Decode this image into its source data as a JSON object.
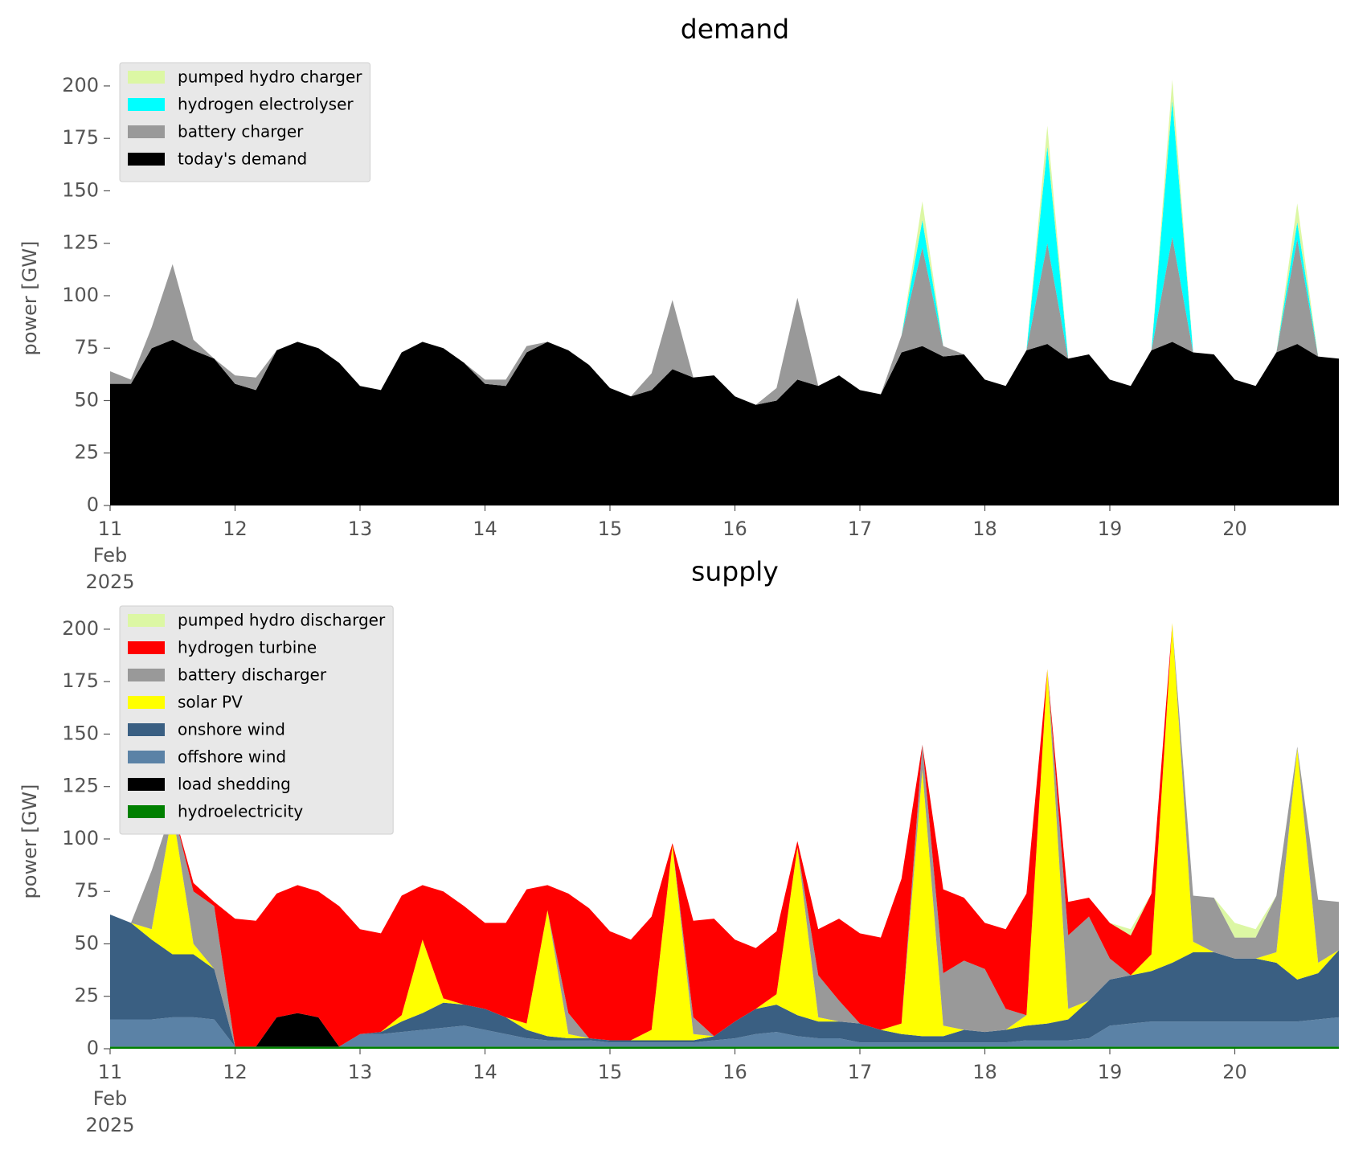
{
  "chart_data": [
    {
      "type": "stacked_area",
      "title": "demand",
      "ylabel": "power [GW]",
      "legend": "upper left",
      "x": [
        11,
        11.167,
        11.333,
        11.5,
        11.667,
        11.833,
        12,
        12.167,
        12.333,
        12.5,
        12.667,
        12.833,
        13,
        13.167,
        13.333,
        13.5,
        13.667,
        13.833,
        14,
        14.167,
        14.333,
        14.5,
        14.667,
        14.833,
        15,
        15.167,
        15.333,
        15.5,
        15.667,
        15.833,
        16,
        16.167,
        16.333,
        16.5,
        16.667,
        16.833,
        17,
        17.167,
        17.333,
        17.5,
        17.667,
        17.833,
        18,
        18.167,
        18.333,
        18.5,
        18.667,
        18.833,
        19,
        19.167,
        19.333,
        19.5,
        19.667,
        19.833,
        20,
        20.167,
        20.333,
        20.5,
        20.667,
        20.833
      ],
      "xlim": [
        11,
        21
      ],
      "xticks": [
        {
          "value": 11,
          "label": "11\nFeb\n2025"
        },
        12,
        13,
        14,
        15,
        16,
        17,
        18,
        19,
        20
      ],
      "ylim": [
        0,
        213
      ],
      "yticks": [
        0,
        25,
        50,
        75,
        100,
        125,
        150,
        175,
        200
      ],
      "series": [
        {
          "name": "today's demand",
          "color": "#000000",
          "values": [
            58,
            58,
            75,
            79,
            74,
            70,
            58,
            55,
            74,
            78,
            75,
            68,
            57,
            55,
            73,
            78,
            75,
            68,
            58,
            57,
            73,
            78,
            74,
            67,
            56,
            52,
            55,
            65,
            61,
            62,
            52,
            48,
            50,
            60,
            57,
            62,
            55,
            53,
            73,
            76,
            71,
            72,
            60,
            57,
            74,
            77,
            70,
            72,
            60,
            57,
            74,
            78,
            73,
            72,
            60,
            57,
            73,
            77,
            71,
            70
          ]
        },
        {
          "name": "battery charger",
          "color": "#999999",
          "values": [
            6,
            2,
            10,
            36,
            5,
            0,
            4,
            6,
            0,
            0,
            0,
            0,
            0,
            0,
            0,
            0,
            0,
            0,
            2,
            3,
            3,
            0,
            0,
            0,
            0,
            0,
            8,
            33,
            0,
            0,
            0,
            0,
            6,
            39,
            0,
            0,
            0,
            0,
            8,
            47,
            5,
            0,
            0,
            0,
            0,
            48,
            0,
            0,
            0,
            0,
            0,
            50,
            0,
            0,
            0,
            0,
            0,
            50,
            0,
            0
          ]
        },
        {
          "name": "hydrogen electrolyser",
          "color": "#00ffff",
          "values": [
            0,
            0,
            0,
            0,
            0,
            0,
            0,
            0,
            0,
            0,
            0,
            0,
            0,
            0,
            0,
            0,
            0,
            0,
            0,
            0,
            0,
            0,
            0,
            0,
            0,
            0,
            0,
            0,
            0,
            0,
            0,
            0,
            0,
            0,
            0,
            0,
            0,
            0,
            0,
            13,
            0,
            0,
            0,
            0,
            0,
            46,
            0,
            0,
            0,
            0,
            0,
            65,
            0,
            0,
            0,
            0,
            0,
            8,
            0,
            0
          ]
        },
        {
          "name": "pumped hydro charger",
          "color": "#dcf7a4",
          "values": [
            0,
            0,
            0,
            0,
            0,
            0,
            0,
            0,
            0,
            0,
            0,
            0,
            0,
            0,
            0,
            0,
            0,
            0,
            0,
            0,
            0,
            0,
            0,
            0,
            0,
            0,
            0,
            0,
            0,
            0,
            0,
            0,
            0,
            0,
            0,
            0,
            0,
            0,
            0,
            9,
            0,
            0,
            0,
            0,
            0,
            10,
            0,
            0,
            0,
            0,
            0,
            10,
            0,
            0,
            0,
            0,
            0,
            9,
            0,
            0
          ]
        }
      ]
    },
    {
      "type": "stacked_area",
      "title": "supply",
      "ylabel": "power [GW]",
      "legend": "upper left",
      "x": [
        11,
        11.167,
        11.333,
        11.5,
        11.667,
        11.833,
        12,
        12.167,
        12.333,
        12.5,
        12.667,
        12.833,
        13,
        13.167,
        13.333,
        13.5,
        13.667,
        13.833,
        14,
        14.167,
        14.333,
        14.5,
        14.667,
        14.833,
        15,
        15.167,
        15.333,
        15.5,
        15.667,
        15.833,
        16,
        16.167,
        16.333,
        16.5,
        16.667,
        16.833,
        17,
        17.167,
        17.333,
        17.5,
        17.667,
        17.833,
        18,
        18.167,
        18.333,
        18.5,
        18.667,
        18.833,
        19,
        19.167,
        19.333,
        19.5,
        19.667,
        19.833,
        20,
        20.167,
        20.333,
        20.5,
        20.667,
        20.833
      ],
      "xlim": [
        11,
        21
      ],
      "xticks": [
        {
          "value": 11,
          "label": "11\nFeb\n2025"
        },
        12,
        13,
        14,
        15,
        16,
        17,
        18,
        19,
        20
      ],
      "ylim": [
        0,
        213
      ],
      "yticks": [
        0,
        25,
        50,
        75,
        100,
        125,
        150,
        175,
        200
      ],
      "series": [
        {
          "name": "hydroelectricity",
          "color": "#008000",
          "values": [
            1,
            1,
            1,
            1,
            1,
            1,
            1,
            1,
            1,
            1,
            1,
            1,
            1,
            1,
            1,
            1,
            1,
            1,
            1,
            1,
            1,
            1,
            1,
            1,
            1,
            1,
            1,
            1,
            1,
            1,
            1,
            1,
            1,
            1,
            1,
            1,
            1,
            1,
            1,
            1,
            1,
            1,
            1,
            1,
            1,
            1,
            1,
            1,
            1,
            1,
            1,
            1,
            1,
            1,
            1,
            1,
            1,
            1,
            1,
            1
          ]
        },
        {
          "name": "load shedding",
          "color": "#000000",
          "values": [
            0,
            0,
            0,
            0,
            0,
            0,
            0,
            0,
            14,
            16,
            14,
            0,
            0,
            0,
            0,
            0,
            0,
            0,
            0,
            0,
            0,
            0,
            0,
            0,
            0,
            0,
            0,
            0,
            0,
            0,
            0,
            0,
            0,
            0,
            0,
            0,
            0,
            0,
            0,
            0,
            0,
            0,
            0,
            0,
            0,
            0,
            0,
            0,
            0,
            0,
            0,
            0,
            0,
            0,
            0,
            0,
            0,
            0,
            0,
            0
          ]
        },
        {
          "name": "offshore wind",
          "color": "#5b82a6",
          "values": [
            13,
            13,
            13,
            14,
            14,
            13,
            0,
            0,
            0,
            0,
            0,
            0,
            6,
            6,
            7,
            8,
            9,
            10,
            8,
            6,
            4,
            3,
            3,
            3,
            2,
            2,
            2,
            2,
            2,
            3,
            4,
            6,
            7,
            5,
            4,
            4,
            2,
            2,
            2,
            2,
            2,
            2,
            2,
            2,
            3,
            3,
            3,
            4,
            10,
            11,
            12,
            12,
            12,
            12,
            12,
            12,
            12,
            12,
            13,
            14
          ]
        },
        {
          "name": "onshore wind",
          "color": "#3a5f82",
          "values": [
            50,
            46,
            38,
            30,
            30,
            24,
            0,
            0,
            0,
            0,
            0,
            0,
            0,
            1,
            5,
            8,
            12,
            10,
            10,
            8,
            4,
            2,
            1,
            1,
            1,
            1,
            1,
            1,
            1,
            2,
            8,
            12,
            13,
            10,
            8,
            8,
            9,
            6,
            4,
            3,
            3,
            6,
            5,
            6,
            7,
            8,
            10,
            18,
            22,
            23,
            24,
            28,
            33,
            33,
            30,
            30,
            28,
            20,
            22,
            32
          ]
        },
        {
          "name": "solar PV",
          "color": "#ffff00",
          "values": [
            0,
            0,
            5,
            68,
            5,
            0,
            0,
            0,
            0,
            0,
            0,
            0,
            0,
            0,
            3,
            35,
            2,
            0,
            0,
            0,
            3,
            60,
            2,
            0,
            0,
            0,
            5,
            93,
            3,
            0,
            0,
            0,
            5,
            80,
            2,
            0,
            0,
            0,
            5,
            127,
            5,
            0,
            0,
            0,
            5,
            169,
            5,
            0,
            0,
            0,
            8,
            162,
            5,
            0,
            0,
            0,
            5,
            110,
            5,
            0
          ]
        },
        {
          "name": "battery discharger",
          "color": "#999999",
          "values": [
            0,
            0,
            28,
            2,
            25,
            30,
            0,
            0,
            0,
            0,
            0,
            0,
            0,
            0,
            0,
            0,
            0,
            0,
            0,
            0,
            0,
            0,
            10,
            0,
            0,
            0,
            0,
            0,
            8,
            0,
            0,
            0,
            0,
            0,
            20,
            10,
            0,
            0,
            0,
            12,
            25,
            33,
            30,
            10,
            0,
            0,
            35,
            40,
            10,
            0,
            0,
            0,
            22,
            26,
            10,
            10,
            27,
            1,
            30,
            23
          ]
        },
        {
          "name": "hydrogen turbine",
          "color": "#ff0000",
          "values": [
            0,
            0,
            0,
            0,
            4,
            2,
            61,
            60,
            59,
            61,
            60,
            67,
            50,
            47,
            57,
            26,
            51,
            47,
            41,
            45,
            64,
            12,
            57,
            62,
            52,
            48,
            54,
            1,
            46,
            56,
            39,
            29,
            30,
            3,
            22,
            39,
            43,
            44,
            69,
            0,
            40,
            30,
            22,
            38,
            58,
            0,
            16,
            9,
            17,
            19,
            29,
            0,
            0,
            0,
            0,
            0,
            0,
            0,
            0,
            0
          ]
        },
        {
          "name": "pumped hydro discharger",
          "color": "#dcf7a4",
          "values": [
            0,
            0,
            0,
            0,
            0,
            0,
            0,
            0,
            0,
            0,
            0,
            0,
            0,
            0,
            0,
            0,
            0,
            0,
            0,
            0,
            0,
            0,
            0,
            0,
            0,
            0,
            0,
            0,
            0,
            0,
            0,
            0,
            0,
            0,
            0,
            0,
            0,
            0,
            0,
            0,
            0,
            0,
            0,
            0,
            0,
            0,
            0,
            0,
            0,
            3,
            0,
            0,
            0,
            0,
            7,
            4,
            0,
            0,
            0,
            0
          ]
        }
      ]
    }
  ]
}
